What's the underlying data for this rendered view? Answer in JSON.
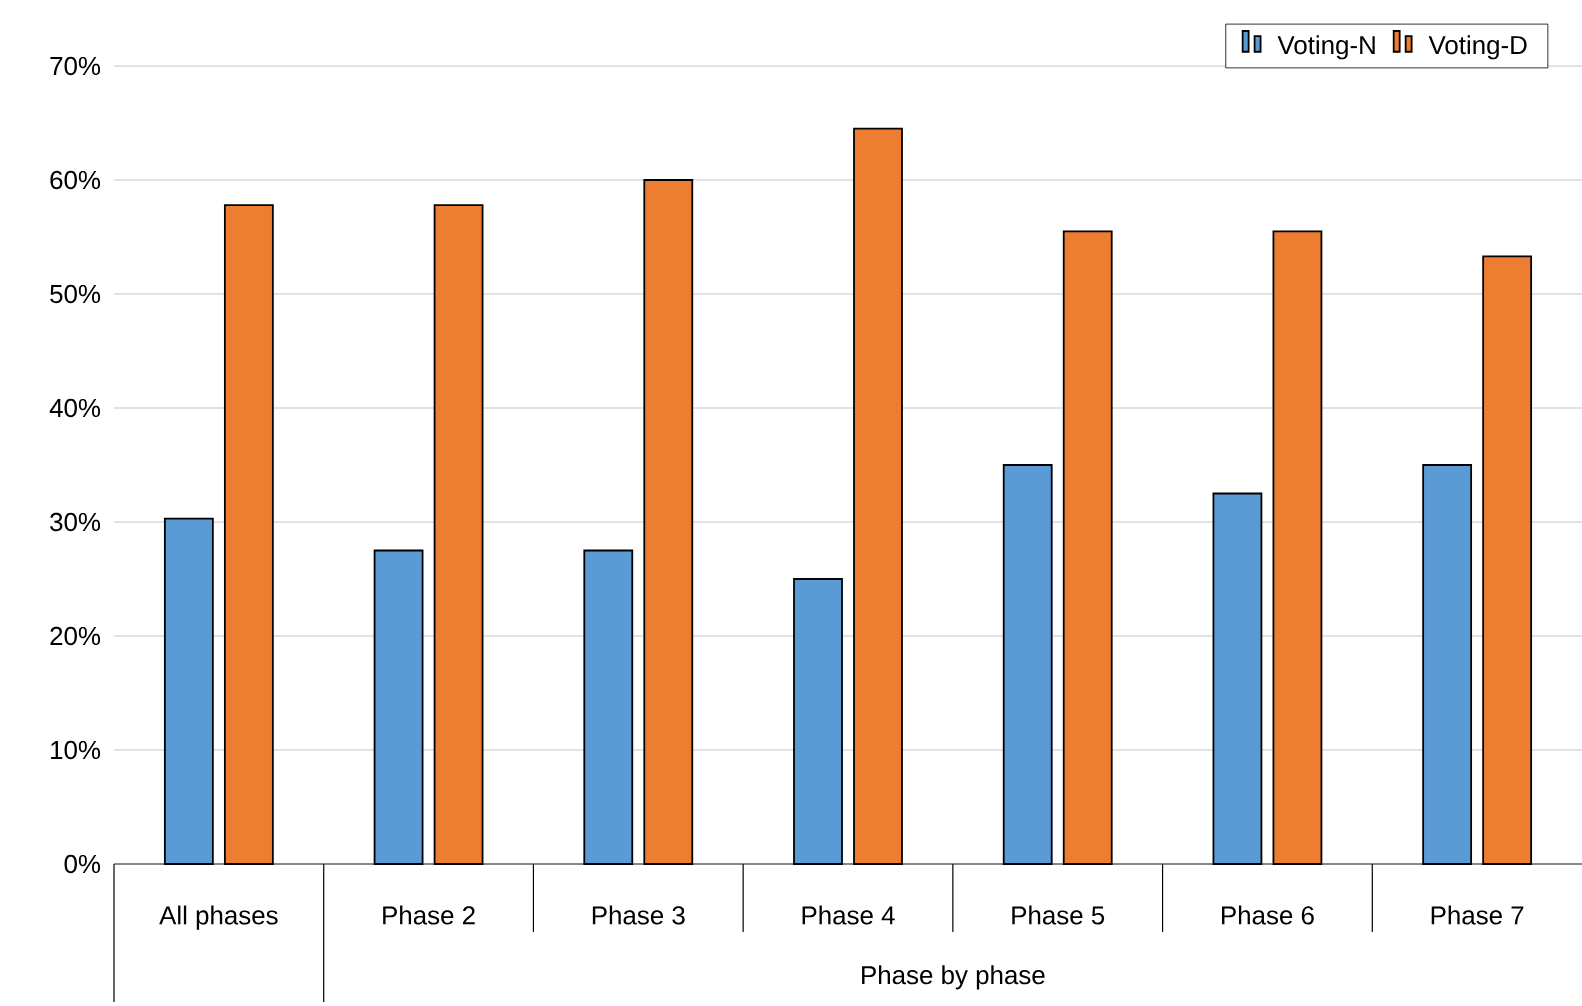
{
  "chart_data": {
    "type": "bar",
    "categories": [
      "All phases",
      "Phase 2",
      "Phase 3",
      "Phase 4",
      "Phase 5",
      "Phase 6",
      "Phase 7"
    ],
    "xlabel": "Phase by phase",
    "series": [
      {
        "name": "Voting-N",
        "color": "#5b9bd5",
        "values": [
          30.3,
          27.5,
          27.5,
          25.0,
          35.0,
          32.5,
          35.0
        ]
      },
      {
        "name": "Voting-D",
        "color": "#ed7d31",
        "values": [
          57.8,
          57.8,
          60.0,
          64.5,
          55.5,
          55.5,
          53.3
        ]
      }
    ],
    "ylim": [
      0,
      70
    ],
    "yticks": [
      {
        "value": 0,
        "label": "0%"
      },
      {
        "value": 10,
        "label": "10%"
      },
      {
        "value": 20,
        "label": "20%"
      },
      {
        "value": 30,
        "label": "30%"
      },
      {
        "value": 40,
        "label": "40%"
      },
      {
        "value": 50,
        "label": "50%"
      },
      {
        "value": 60,
        "label": "60%"
      },
      {
        "value": 70,
        "label": "70%"
      }
    ],
    "grid": "y",
    "legend": "top right"
  }
}
